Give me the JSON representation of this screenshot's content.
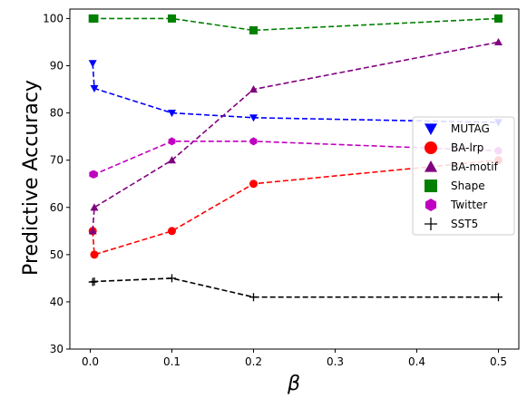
{
  "chart_data": {
    "type": "line",
    "title": "",
    "xlabel": "β",
    "ylabel": "Predictive Accuracy",
    "xlim": [
      -0.025,
      0.525
    ],
    "ylim": [
      30,
      102
    ],
    "xticks": [
      0.0,
      0.1,
      0.2,
      0.3,
      0.4,
      0.5
    ],
    "xtick_labels": [
      "0.0",
      "0.1",
      "0.2",
      "0.3",
      "0.4",
      "0.5"
    ],
    "yticks": [
      30,
      40,
      50,
      60,
      70,
      80,
      90,
      100
    ],
    "ytick_labels": [
      "30",
      "40",
      "50",
      "60",
      "70",
      "80",
      "90",
      "100"
    ],
    "grid": false,
    "legend_position": "right",
    "series": [
      {
        "name": "MUTAG",
        "color": "#0000ff",
        "marker": "triangle-down",
        "x": [
          0.003,
          0.005,
          0.1,
          0.2,
          0.5
        ],
        "y": [
          90.5,
          85.2,
          80.0,
          79.0,
          78.0
        ]
      },
      {
        "name": "BA-lrp",
        "color": "#ff0000",
        "marker": "circle",
        "x": [
          0.003,
          0.005,
          0.1,
          0.2,
          0.5
        ],
        "y": [
          55.0,
          50.0,
          55.0,
          65.0,
          70.0
        ]
      },
      {
        "name": "BA-motif",
        "color": "#800080",
        "marker": "triangle-up",
        "x": [
          0.003,
          0.005,
          0.1,
          0.2,
          0.5
        ],
        "y": [
          55.0,
          60.0,
          70.0,
          85.0,
          95.0
        ]
      },
      {
        "name": "Shape",
        "color": "#008000",
        "marker": "square",
        "x": [
          0.003,
          0.005,
          0.1,
          0.2,
          0.5
        ],
        "y": [
          100.0,
          100.0,
          100.0,
          97.5,
          100.0
        ]
      },
      {
        "name": "Twitter",
        "color": "#c000c0",
        "marker": "hexagon",
        "x": [
          0.003,
          0.005,
          0.1,
          0.2,
          0.5
        ],
        "y": [
          67.0,
          67.0,
          74.0,
          74.0,
          72.0
        ]
      },
      {
        "name": "SST5",
        "color": "#000000",
        "marker": "plus",
        "x": [
          0.003,
          0.005,
          0.1,
          0.2,
          0.5
        ],
        "y": [
          44.2,
          44.3,
          45.0,
          41.0,
          41.0
        ]
      }
    ]
  }
}
